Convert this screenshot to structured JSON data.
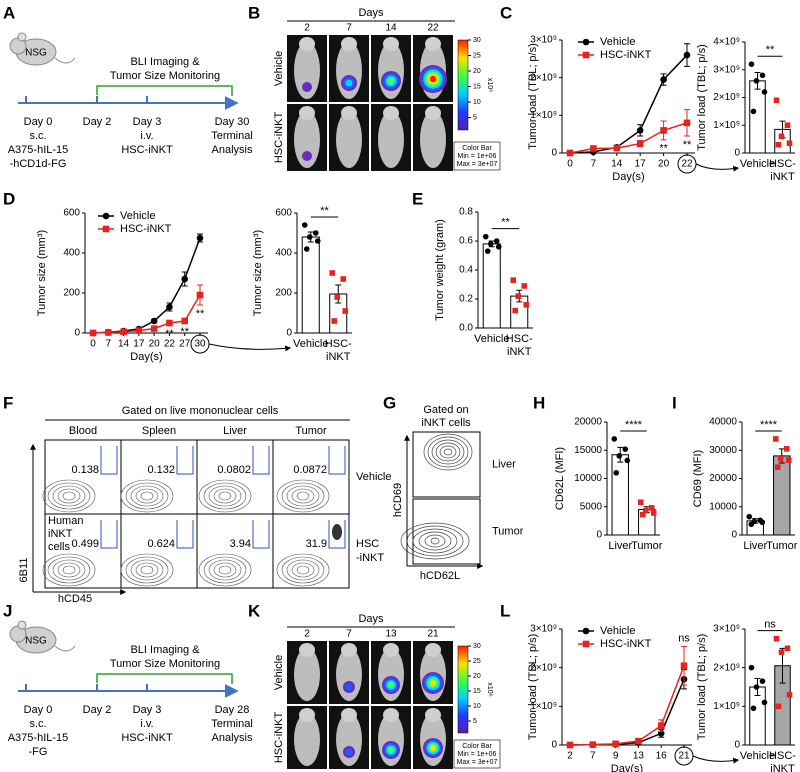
{
  "panels": [
    "A",
    "B",
    "C",
    "D",
    "E",
    "F",
    "G",
    "H",
    "I",
    "J",
    "K",
    "L"
  ],
  "timeline_A": {
    "mouse": "NSG",
    "monitor": [
      "BLI Imaging &",
      "Tumor Size Monitoring"
    ],
    "events": [
      [
        "Day 0",
        "s.c.",
        "A375-hIL-15",
        "-hCD1d-FG"
      ],
      [
        "Day 2"
      ],
      [
        "Day 3",
        "i.v.",
        "HSC-iNKT"
      ],
      [
        "Day 30",
        "Terminal",
        "Analysis"
      ]
    ]
  },
  "timeline_J": {
    "mouse": "NSG",
    "monitor": [
      "BLI Imaging &",
      "Tumor Size Monitoring"
    ],
    "events": [
      [
        "Day 0",
        "s.c.",
        "A375-hIL-15",
        "-FG"
      ],
      [
        "Day 2"
      ],
      [
        "Day 3",
        "i.v.",
        "HSC-iNKT"
      ],
      [
        "Day 28",
        "Terminal",
        "Analysis"
      ]
    ]
  },
  "imaging_B": {
    "header": "Days",
    "days": [
      "2",
      "7",
      "14",
      "22"
    ],
    "groups": [
      "Vehicle",
      "HSC-iNKT"
    ],
    "clim": [
      1,
      30
    ],
    "colorbar_ticks": [
      5,
      10,
      15,
      20,
      25,
      30
    ],
    "colorbar_unit": "x10⁶",
    "colorbar_box": [
      "Color Bar",
      "Min = 1e+06",
      "Max = 3e+07"
    ]
  },
  "imaging_K": {
    "header": "Days",
    "days": [
      "2",
      "7",
      "13",
      "21"
    ],
    "groups": [
      "Vehicle",
      "HSC-iNKT"
    ],
    "clim": [
      1,
      30
    ],
    "colorbar_ticks": [
      5,
      10,
      15,
      20,
      25,
      30
    ],
    "colorbar_unit": "x10⁶",
    "colorbar_box": [
      "Color Bar",
      "Min = 1e+06",
      "Max = 3e+07"
    ]
  },
  "flow_F": {
    "title": "Gated on live mononuclear cells",
    "tissues": [
      "Blood",
      "Spleen",
      "Liver",
      "Tumor"
    ],
    "groups": [
      [
        "Vehicle"
      ],
      [
        "HSC",
        "-iNKT"
      ]
    ],
    "values": [
      [
        0.138,
        0.132,
        0.0802,
        0.0872
      ],
      [
        0.499,
        0.624,
        3.94,
        31.9
      ]
    ],
    "gate_label": [
      "Human",
      "iNKT",
      "cells"
    ],
    "y_axis": "6B11",
    "x_axis": "hCD45"
  },
  "flow_G": {
    "title": [
      "Gated on",
      "iNKT cells"
    ],
    "tissues": [
      "Liver",
      "Tumor"
    ],
    "y_axis": "hCD69",
    "x_axis": "hCD62L"
  },
  "chart_data": [
    {
      "type": "line",
      "xlabel": "Day(s)",
      "ylabel": "Tumor load (TBL; p/s)",
      "categories": [
        "0",
        "7",
        "14",
        "17",
        "20",
        "22"
      ],
      "ylim": [
        0,
        3000000000.0
      ],
      "yticks": [
        0,
        {
          "value": 1000000000.0,
          "label": "1×10⁹"
        },
        {
          "value": 2000000000.0,
          "label": "2×10⁹"
        },
        {
          "value": 3000000000.0,
          "label": "3×10⁹"
        }
      ],
      "legend": "top-left",
      "series": [
        {
          "name": "Vehicle",
          "color": "#000000",
          "marker": "circle",
          "values": [
            0,
            30000000.0,
            150000000.0,
            600000000.0,
            1950000000.0,
            2600000000.0
          ],
          "errors": [
            0,
            10000000.0,
            50000000.0,
            150000000.0,
            150000000.0,
            300000000.0
          ]
        },
        {
          "name": "HSC-iNKT",
          "color": "#e8231f",
          "marker": "square",
          "values": [
            0,
            120000000.0,
            130000000.0,
            250000000.0,
            600000000.0,
            800000000.0
          ],
          "errors": [
            0,
            30000000.0,
            40000000.0,
            80000000.0,
            250000000.0,
            350000000.0
          ]
        }
      ],
      "annotations": [
        "**",
        "**"
      ]
    },
    {
      "type": "bar",
      "ylabel": "Tumor load (TBL; p/s)",
      "categories": [
        "Vehicle",
        "HSC-iNKT"
      ],
      "values": [
        2600000000.0,
        850000000.0
      ],
      "errors": [
        300000000.0,
        300000000.0
      ],
      "points": [
        [
          3200000000.0,
          2800000000.0,
          2600000000.0,
          2200000000.0,
          1500000000.0
        ],
        [
          1900000000.0,
          1000000000.0,
          600000000.0,
          350000000.0,
          300000000.0
        ]
      ],
      "bar_colors": [
        "#ffffff",
        "#ffffff"
      ],
      "point_colors": [
        "#000000",
        "#e8231f"
      ],
      "point_markers": [
        "circle",
        "square"
      ],
      "ylim": [
        0,
        4000000000.0
      ],
      "yticks": [
        0,
        {
          "value": 1000000000.0,
          "label": "1×10⁹"
        },
        {
          "value": 2000000000.0,
          "label": "2×10⁹"
        },
        {
          "value": 3000000000.0,
          "label": "3×10⁹"
        },
        {
          "value": 4000000000.0,
          "label": "4×10⁹"
        }
      ],
      "annotation": "**"
    },
    {
      "type": "line",
      "xlabel": "Day(s)",
      "ylabel": "Tumor size (mm³)",
      "categories": [
        "0",
        "7",
        "14",
        "17",
        "20",
        "22",
        "27",
        "30"
      ],
      "ylim": [
        0,
        600
      ],
      "yticks": [
        0,
        200,
        400,
        600
      ],
      "legend": "top-left",
      "series": [
        {
          "name": "Vehicle",
          "color": "#000000",
          "marker": "circle",
          "values": [
            0,
            4,
            10,
            20,
            60,
            130,
            270,
            475
          ],
          "errors": [
            0,
            1,
            2,
            4,
            8,
            20,
            35,
            20
          ]
        },
        {
          "name": "HSC-iNKT",
          "color": "#e8231f",
          "marker": "square",
          "values": [
            0,
            3,
            6,
            12,
            22,
            50,
            60,
            190
          ],
          "errors": [
            0,
            1,
            2,
            3,
            5,
            10,
            10,
            50
          ]
        }
      ],
      "annotations": [
        "**",
        "**",
        "**"
      ]
    },
    {
      "type": "bar",
      "ylabel": "Tumor size (mm³)",
      "categories": [
        "Vehicle",
        "HSC-iNKT"
      ],
      "values": [
        480,
        195
      ],
      "errors": [
        25,
        45
      ],
      "points": [
        [
          540,
          500,
          480,
          460,
          420
        ],
        [
          300,
          270,
          180,
          110,
          60
        ]
      ],
      "bar_colors": [
        "#ffffff",
        "#ffffff"
      ],
      "point_colors": [
        "#000000",
        "#e8231f"
      ],
      "point_markers": [
        "circle",
        "square"
      ],
      "ylim": [
        0,
        600
      ],
      "yticks": [
        0,
        200,
        400,
        600
      ],
      "annotation": "**"
    },
    {
      "type": "bar",
      "ylabel": "Tumor weight (gram)",
      "categories": [
        "Vehicle",
        "HSC-iNKT"
      ],
      "values": [
        0.58,
        0.22
      ],
      "errors": [
        0.02,
        0.04
      ],
      "points": [
        [
          0.63,
          0.6,
          0.58,
          0.56,
          0.53
        ],
        [
          0.33,
          0.29,
          0.22,
          0.16,
          0.12
        ]
      ],
      "bar_colors": [
        "#ffffff",
        "#ffffff"
      ],
      "point_colors": [
        "#000000",
        "#e8231f"
      ],
      "point_markers": [
        "circle",
        "square"
      ],
      "ylim": [
        0,
        0.8
      ],
      "yticks": [
        {
          "value": 0,
          "label": "0.0"
        },
        0.2,
        0.4,
        0.6,
        0.8
      ],
      "annotation": "**"
    },
    {
      "type": "bar",
      "ylabel": "CD62L (MFI)",
      "categories": [
        "Liver",
        "Tumor"
      ],
      "values": [
        14200,
        4500
      ],
      "errors": [
        1300,
        500
      ],
      "points": [
        [
          17000,
          15200,
          14000,
          13200,
          11000
        ],
        [
          5800,
          4800,
          4300,
          3900,
          3600
        ]
      ],
      "bar_colors": [
        "#ffffff",
        "#ffffff"
      ],
      "point_colors": [
        "#000000",
        "#e8231f"
      ],
      "point_markers": [
        "circle",
        "square"
      ],
      "ylim": [
        0,
        20000
      ],
      "yticks": [
        0,
        5000,
        10000,
        15000,
        20000
      ],
      "annotation": "****"
    },
    {
      "type": "bar",
      "ylabel": "CD69 (MFI)",
      "categories": [
        "Liver",
        "Tumor"
      ],
      "values": [
        5000,
        28000
      ],
      "errors": [
        800,
        2500
      ],
      "points": [
        [
          6500,
          5200,
          4800,
          4500,
          3800
        ],
        [
          34000,
          30500,
          27000,
          26500,
          24000
        ]
      ],
      "bar_colors": [
        "#ffffff",
        "#a6a6a6"
      ],
      "point_colors": [
        "#000000",
        "#e8231f"
      ],
      "point_markers": [
        "circle",
        "square"
      ],
      "ylim": [
        0,
        40000
      ],
      "yticks": [
        0,
        10000,
        20000,
        30000,
        40000
      ],
      "annotation": "****"
    },
    {
      "type": "line",
      "xlabel": "Day(s)",
      "ylabel": "Tumor load (TBL; p/s)",
      "categories": [
        "2",
        "7",
        "9",
        "13",
        "16",
        "21"
      ],
      "ylim": [
        0,
        3000000000.0
      ],
      "yticks": [
        0,
        {
          "value": 1000000000.0,
          "label": "1×10⁹"
        },
        {
          "value": 2000000000.0,
          "label": "2×10⁹"
        },
        {
          "value": 3000000000.0,
          "label": "3×10⁹"
        }
      ],
      "legend": "top-left",
      "series": [
        {
          "name": "Vehicle",
          "color": "#000000",
          "marker": "circle",
          "values": [
            0,
            10000000.0,
            20000000.0,
            60000000.0,
            300000000.0,
            1700000000.0
          ],
          "errors": [
            0,
            0,
            5000000.0,
            20000000.0,
            100000000.0,
            250000000.0
          ]
        },
        {
          "name": "HSC-iNKT",
          "color": "#e8231f",
          "marker": "square",
          "values": [
            0,
            10000000.0,
            30000000.0,
            100000000.0,
            500000000.0,
            2050000000.0
          ],
          "errors": [
            0,
            0,
            10000000.0,
            30000000.0,
            150000000.0,
            500000000.0
          ]
        }
      ],
      "annotations": [
        "ns"
      ]
    },
    {
      "type": "bar",
      "ylabel": "Tumor load (TBL; p/s)",
      "categories": [
        "Vehicle",
        "HSC-iNKT"
      ],
      "values": [
        1500000000.0,
        2050000000.0
      ],
      "errors": [
        220000000.0,
        450000000.0
      ],
      "points": [
        [
          2000000000.0,
          1650000000.0,
          1500000000.0,
          1100000000.0,
          950000000.0
        ],
        [
          2750000000.0,
          2500000000.0,
          2400000000.0,
          1300000000.0,
          1000000000.0
        ]
      ],
      "bar_colors": [
        "#ffffff",
        "#a6a6a6"
      ],
      "point_colors": [
        "#000000",
        "#e8231f"
      ],
      "point_markers": [
        "circle",
        "square"
      ],
      "ylim": [
        0,
        3000000000.0
      ],
      "yticks": [
        0,
        {
          "value": 1000000000.0,
          "label": "1×10⁹"
        },
        {
          "value": 2000000000.0,
          "label": "2×10⁹"
        },
        {
          "value": 3000000000.0,
          "label": "3×10⁹"
        }
      ],
      "annotation": "ns"
    }
  ]
}
